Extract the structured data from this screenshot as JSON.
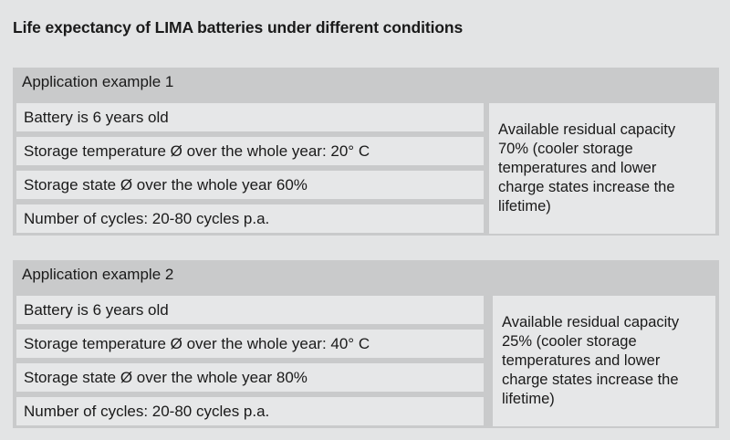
{
  "title": "Life expectancy of LIMA batteries under different conditions",
  "examples": [
    {
      "heading": "Application example 1",
      "rows": [
        "Battery is 6 years old",
        "Storage temperature Ø over the whole year: 20° C",
        "Storage state Ø over the whole year 60%",
        "Number of cycles: 20-80 cycles p.a."
      ],
      "result": "Available residual capacity 70% (cooler storage temperatures and lower charge states increase the lifetime)"
    },
    {
      "heading": "Application example 2",
      "rows": [
        "Battery is 6 years old",
        "Storage temperature Ø over the whole year: 40° C",
        "Storage state Ø over the whole year 80%",
        "Number of cycles: 20-80 cycles p.a."
      ],
      "result": "Available residual capacity 25% (cooler storage temperatures and lower charge states increase the lifetime)"
    }
  ]
}
